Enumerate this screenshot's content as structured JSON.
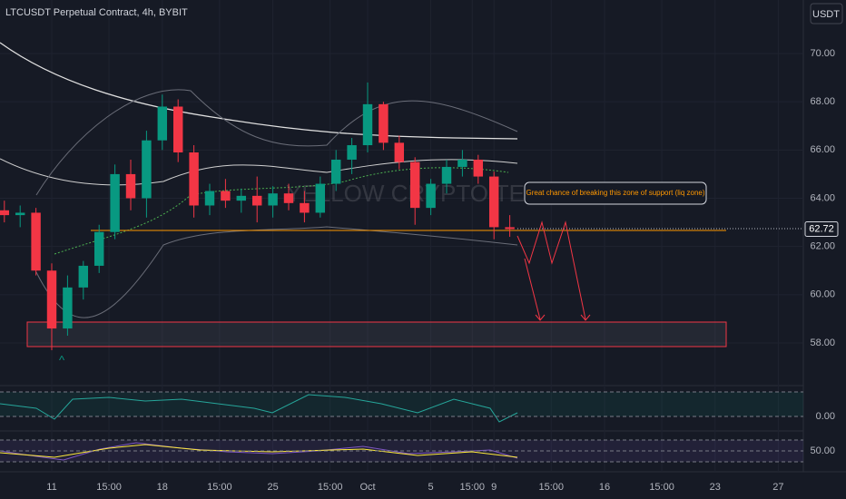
{
  "chart_data": {
    "type": "candlestick",
    "title": "LTCUSDT Perpetual Contract, 4h, BYBIT",
    "currency": "USDT",
    "watermark": "YELLOW CRYPTO TEAM",
    "annotation": "Great chance of breaking this zone of support (liq zone)",
    "up_color": "#089981",
    "down_color": "#f23645",
    "last_price": 62.72,
    "x": [
      -3,
      -2,
      -1,
      0,
      1,
      2,
      3,
      4,
      5,
      6,
      7,
      8,
      9,
      10,
      11,
      12,
      13,
      14,
      15,
      16,
      17,
      18,
      19,
      20,
      21,
      22,
      23,
      24,
      25,
      26,
      27,
      28,
      29
    ],
    "open": [
      63.5,
      63.3,
      63.4,
      61.0,
      58.6,
      60.3,
      61.2,
      62.6,
      65.0,
      64.0,
      66.4,
      67.8,
      65.9,
      63.7,
      64.3,
      63.9,
      64.1,
      63.7,
      64.2,
      63.8,
      63.4,
      64.6,
      65.6,
      66.2,
      67.9,
      66.3,
      65.5,
      63.6,
      64.6,
      65.3,
      65.6,
      64.9,
      62.8
    ],
    "high": [
      63.9,
      63.7,
      63.6,
      61.3,
      60.8,
      61.4,
      62.9,
      65.4,
      65.6,
      66.8,
      68.3,
      68.1,
      66.2,
      64.6,
      64.8,
      64.4,
      64.9,
      64.5,
      64.6,
      64.3,
      64.9,
      66.0,
      66.5,
      68.8,
      68.0,
      66.6,
      65.7,
      64.8,
      65.6,
      66.0,
      65.8,
      65.1,
      63.3
    ],
    "low": [
      63.0,
      62.8,
      60.8,
      57.7,
      58.3,
      59.8,
      60.9,
      62.3,
      63.5,
      63.2,
      66.0,
      65.5,
      63.2,
      63.3,
      63.6,
      63.4,
      63.0,
      63.2,
      63.5,
      63.0,
      63.2,
      64.3,
      65.0,
      65.9,
      66.0,
      65.2,
      62.9,
      63.3,
      64.2,
      64.9,
      64.6,
      62.3,
      62.4
    ],
    "close": [
      63.3,
      63.4,
      61.0,
      58.6,
      60.3,
      61.2,
      62.6,
      65.0,
      64.0,
      66.4,
      67.8,
      65.9,
      63.7,
      64.3,
      63.9,
      64.1,
      63.7,
      64.2,
      63.8,
      63.4,
      64.6,
      65.6,
      66.2,
      67.9,
      66.3,
      65.5,
      63.6,
      64.6,
      65.3,
      65.6,
      64.9,
      62.8,
      62.72
    ],
    "xlim": [
      -3.276,
      47.586
    ],
    "xticks": [
      {
        "value": 0,
        "label": "11"
      },
      {
        "value": 3.625,
        "label": "15:00"
      },
      {
        "value": 7,
        "label": "18"
      },
      {
        "value": 10.625,
        "label": "15:00"
      },
      {
        "value": 14,
        "label": "25"
      },
      {
        "value": 17.625,
        "label": "15:00"
      },
      {
        "value": 20,
        "label": "Oct"
      },
      {
        "value": 24,
        "label": "5"
      },
      {
        "value": 26.625,
        "label": "15:00"
      },
      {
        "value": 28,
        "label": "9"
      },
      {
        "value": 31.625,
        "label": "15:00"
      },
      {
        "value": 35,
        "label": "16"
      },
      {
        "value": 38.625,
        "label": "15:00"
      },
      {
        "value": 42,
        "label": "23"
      },
      {
        "value": 46,
        "label": "27"
      }
    ],
    "ylim": [
      56.42,
      72.22
    ],
    "yticks": [
      {
        "value": 58,
        "label": "58.00"
      },
      {
        "value": 60,
        "label": "60.00"
      },
      {
        "value": 62,
        "label": "62.00"
      },
      {
        "value": 64,
        "label": "64.00"
      },
      {
        "value": 66,
        "label": "66.00"
      },
      {
        "value": 68,
        "label": "68.00"
      },
      {
        "value": 70,
        "label": "70.00"
      }
    ],
    "panes": [
      {
        "yticks": [
          {
            "value": 0,
            "label": "0.00"
          }
        ]
      },
      {
        "yticks": [
          {
            "value": 50,
            "label": "50.00"
          }
        ]
      }
    ]
  }
}
